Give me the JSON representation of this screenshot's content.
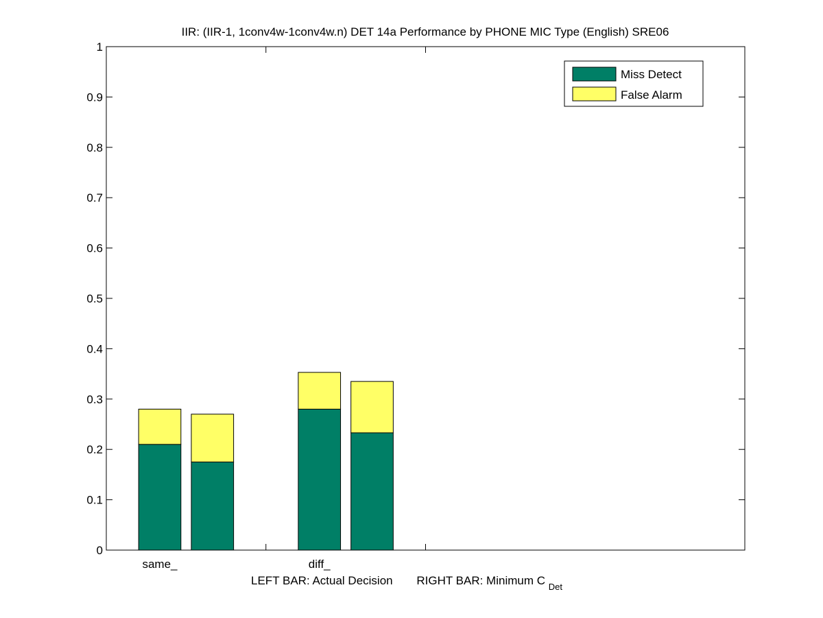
{
  "chart_data": {
    "type": "bar",
    "stacked": true,
    "title": "IIR: (IIR-1, 1conv4w-1conv4w.n) DET 14a Performance by PHONE MIC Type (English) SRE06",
    "xlabel_left": "LEFT BAR: Actual Decision",
    "xlabel_right_main": "RIGHT BAR: Minimum C",
    "xlabel_right_sub": "Det",
    "ylim": [
      0,
      1
    ],
    "xlim": [
      0,
      4
    ],
    "ytick_values": [
      0,
      0.1,
      0.2,
      0.3,
      0.4,
      0.5,
      0.6,
      0.7,
      0.8,
      0.9,
      1
    ],
    "ytick_labels": [
      "0",
      "0.1",
      "0.2",
      "0.3",
      "0.4",
      "0.5",
      "0.6",
      "0.7",
      "0.8",
      "0.9",
      "1"
    ],
    "xtick_values": [
      1,
      2
    ],
    "groups": [
      {
        "label": "same_",
        "center": 0.5,
        "actual": {
          "miss": 0.21,
          "false_alarm": 0.07
        },
        "minimum": {
          "miss": 0.175,
          "false_alarm": 0.095
        }
      },
      {
        "label": "diff_",
        "center": 1.5,
        "actual": {
          "miss": 0.28,
          "false_alarm": 0.073
        },
        "minimum": {
          "miss": 0.233,
          "false_alarm": 0.102
        }
      }
    ],
    "bar_width": 0.265,
    "bar_offset": 0.165,
    "legend": {
      "placement": "top-right",
      "entries": [
        {
          "name": "Miss Detect",
          "color": "#007f66"
        },
        {
          "name": "False Alarm",
          "color": "#ffff66"
        }
      ]
    },
    "grid": false
  }
}
